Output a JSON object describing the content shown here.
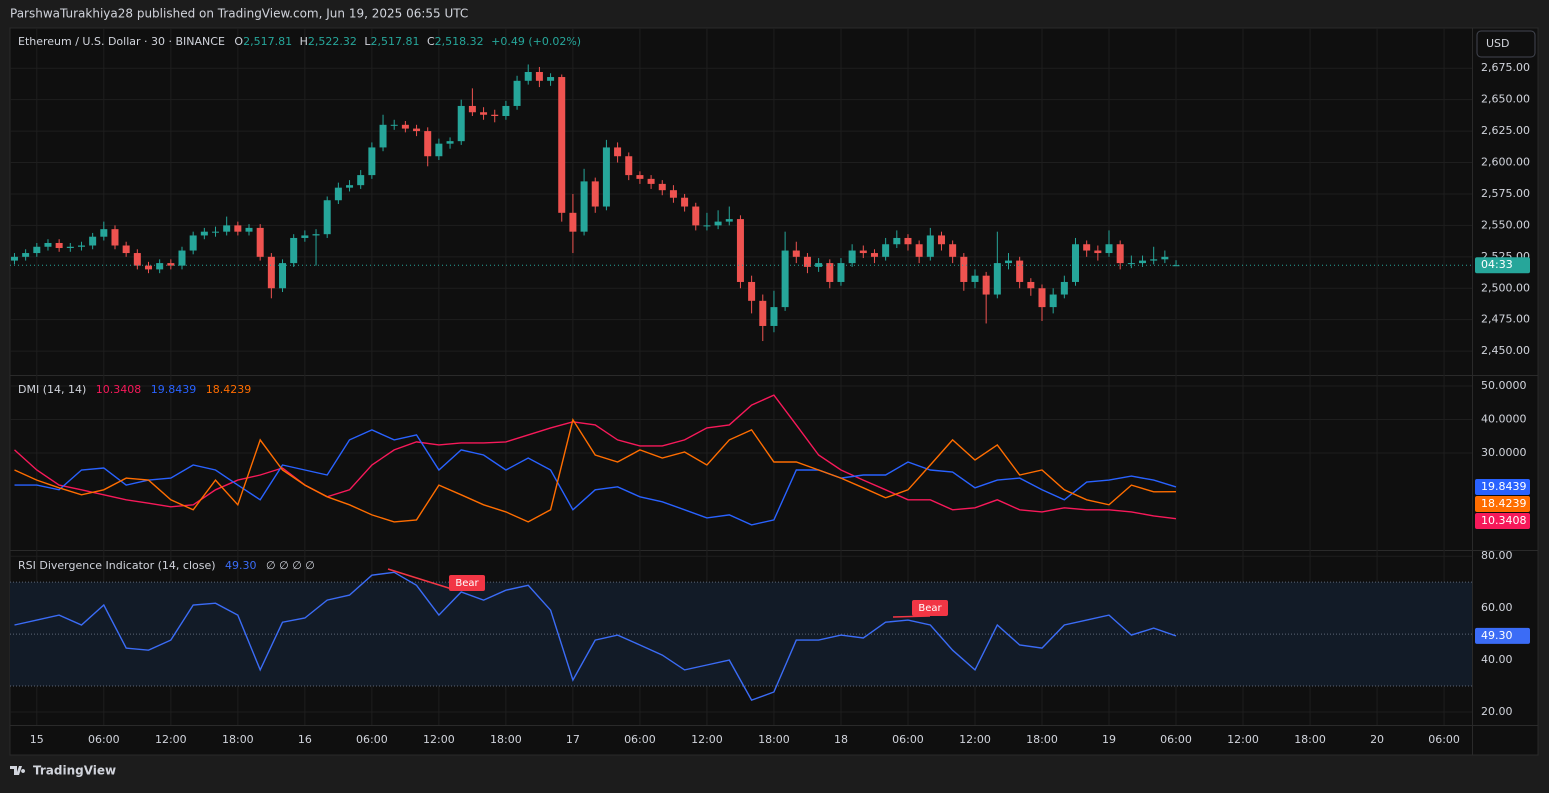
{
  "header": {
    "attribution": "ParshwaTurakhiya28 published on TradingView.com, Jun 19, 2025 06:55 UTC",
    "currency_button": "USD",
    "logo": "TradingView"
  },
  "time_axis": {
    "xlim": [
      -2.4,
      128.5
    ],
    "xticks": [
      {
        "value": 0,
        "label": "15"
      },
      {
        "value": 6,
        "label": "06:00"
      },
      {
        "value": 12,
        "label": "12:00"
      },
      {
        "value": 18,
        "label": "18:00"
      },
      {
        "value": 24,
        "label": "16"
      },
      {
        "value": 30,
        "label": "06:00"
      },
      {
        "value": 36,
        "label": "12:00"
      },
      {
        "value": 42,
        "label": "18:00"
      },
      {
        "value": 48,
        "label": "17"
      },
      {
        "value": 54,
        "label": "06:00"
      },
      {
        "value": 60,
        "label": "12:00"
      },
      {
        "value": 66,
        "label": "18:00"
      },
      {
        "value": 72,
        "label": "18"
      },
      {
        "value": 78,
        "label": "06:00"
      },
      {
        "value": 84,
        "label": "12:00"
      },
      {
        "value": 90,
        "label": "18:00"
      },
      {
        "value": 96,
        "label": "19"
      },
      {
        "value": 102,
        "label": "06:00"
      },
      {
        "value": 108,
        "label": "12:00"
      },
      {
        "value": 114,
        "label": "18:00"
      },
      {
        "value": 120,
        "label": "20"
      },
      {
        "value": 126,
        "label": "06:00"
      }
    ]
  },
  "chart_data": [
    {
      "type": "candlestick",
      "title": "Ethereum / U.S. Dollar · 30 · BINANCE",
      "ohlc_letters": [
        "O",
        "H",
        "L",
        "C"
      ],
      "ohlc_labels": [
        "2,517.81",
        "2,522.32",
        "2,517.81",
        "2,518.32"
      ],
      "change": "+0.49 (+0.02%)",
      "countdown": "04:33",
      "up_color": "#26a69a",
      "down_color": "#ef5350",
      "ylim": [
        2431,
        2707
      ],
      "yticks": [
        {
          "value": 2450,
          "label": "2,450.00"
        },
        {
          "value": 2475,
          "label": "2,475.00"
        },
        {
          "value": 2500,
          "label": "2,500.00"
        },
        {
          "value": 2525,
          "label": "2,525.00"
        },
        {
          "value": 2550,
          "label": "2,550.00"
        },
        {
          "value": 2575,
          "label": "2,575.00"
        },
        {
          "value": 2600,
          "label": "2,600.00"
        },
        {
          "value": 2625,
          "label": "2,625.00"
        },
        {
          "value": 2650,
          "label": "2,650.00"
        },
        {
          "value": 2675,
          "label": "2,675.00"
        }
      ],
      "x": [
        -2,
        -1,
        0,
        1,
        2,
        3,
        4,
        5,
        6,
        7,
        8,
        9,
        10,
        11,
        12,
        13,
        14,
        15,
        16,
        17,
        18,
        19,
        20,
        21,
        22,
        23,
        24,
        25,
        26,
        27,
        28,
        29,
        30,
        31,
        32,
        33,
        34,
        35,
        36,
        37,
        38,
        39,
        40,
        41,
        42,
        43,
        44,
        45,
        46,
        47,
        48,
        49,
        50,
        51,
        52,
        53,
        54,
        55,
        56,
        57,
        58,
        59,
        60,
        61,
        62,
        63,
        64,
        65,
        66,
        67,
        68,
        69,
        70,
        71,
        72,
        73,
        74,
        75,
        76,
        77,
        78,
        79,
        80,
        81,
        82,
        83,
        84,
        85,
        86,
        87,
        88,
        89,
        90,
        91,
        92,
        93,
        94,
        95,
        96,
        97,
        98,
        99,
        100,
        101,
        102
      ],
      "ohlc": [
        [
          2522,
          2528,
          2519,
          2525
        ],
        [
          2525,
          2531,
          2522,
          2528
        ],
        [
          2528,
          2536,
          2525,
          2533
        ],
        [
          2533,
          2539,
          2530,
          2536
        ],
        [
          2536,
          2539,
          2529,
          2532
        ],
        [
          2532,
          2536,
          2529,
          2533
        ],
        [
          2533,
          2537,
          2530,
          2534
        ],
        [
          2534,
          2544,
          2531,
          2541
        ],
        [
          2541,
          2553,
          2538,
          2547
        ],
        [
          2547,
          2550,
          2531,
          2534
        ],
        [
          2534,
          2537,
          2525,
          2528
        ],
        [
          2528,
          2531,
          2515,
          2518
        ],
        [
          2518,
          2521,
          2512,
          2515
        ],
        [
          2515,
          2523,
          2512,
          2520
        ],
        [
          2520,
          2523,
          2515,
          2518
        ],
        [
          2518,
          2533,
          2515,
          2530
        ],
        [
          2530,
          2545,
          2527,
          2542
        ],
        [
          2542,
          2548,
          2539,
          2545
        ],
        [
          2545,
          2549,
          2541,
          2545
        ],
        [
          2545,
          2557,
          2542,
          2550
        ],
        [
          2550,
          2553,
          2542,
          2545
        ],
        [
          2545,
          2551,
          2542,
          2548
        ],
        [
          2548,
          2551,
          2522,
          2525
        ],
        [
          2525,
          2528,
          2492,
          2500
        ],
        [
          2500,
          2523,
          2497,
          2520
        ],
        [
          2520,
          2543,
          2517,
          2540
        ],
        [
          2540,
          2546,
          2537,
          2542
        ],
        [
          2542,
          2547,
          2518,
          2543
        ],
        [
          2543,
          2573,
          2540,
          2570
        ],
        [
          2570,
          2584,
          2567,
          2580
        ],
        [
          2580,
          2586,
          2577,
          2582
        ],
        [
          2582,
          2594,
          2579,
          2590
        ],
        [
          2590,
          2616,
          2587,
          2612
        ],
        [
          2612,
          2638,
          2609,
          2630
        ],
        [
          2630,
          2634,
          2626,
          2630
        ],
        [
          2630,
          2633,
          2624,
          2627
        ],
        [
          2627,
          2630,
          2621,
          2625
        ],
        [
          2625,
          2628,
          2597,
          2605
        ],
        [
          2605,
          2619,
          2602,
          2615
        ],
        [
          2615,
          2620,
          2611,
          2617
        ],
        [
          2617,
          2650,
          2614,
          2645
        ],
        [
          2645,
          2659,
          2637,
          2640
        ],
        [
          2640,
          2644,
          2634,
          2638
        ],
        [
          2638,
          2642,
          2632,
          2637
        ],
        [
          2637,
          2649,
          2634,
          2645
        ],
        [
          2645,
          2669,
          2642,
          2665
        ],
        [
          2665,
          2678,
          2662,
          2672
        ],
        [
          2672,
          2676,
          2660,
          2665
        ],
        [
          2665,
          2671,
          2661,
          2668
        ],
        [
          2668,
          2670,
          2553,
          2560
        ],
        [
          2560,
          2575,
          2528,
          2545
        ],
        [
          2545,
          2595,
          2542,
          2585
        ],
        [
          2585,
          2588,
          2560,
          2565
        ],
        [
          2565,
          2618,
          2562,
          2612
        ],
        [
          2612,
          2616,
          2600,
          2605
        ],
        [
          2605,
          2608,
          2586,
          2590
        ],
        [
          2590,
          2593,
          2583,
          2587
        ],
        [
          2587,
          2590,
          2579,
          2583
        ],
        [
          2583,
          2586,
          2574,
          2578
        ],
        [
          2578,
          2582,
          2568,
          2572
        ],
        [
          2572,
          2575,
          2561,
          2565
        ],
        [
          2565,
          2568,
          2546,
          2550
        ],
        [
          2550,
          2560,
          2546,
          2550
        ],
        [
          2550,
          2562,
          2547,
          2553
        ],
        [
          2553,
          2565,
          2550,
          2555
        ],
        [
          2555,
          2558,
          2500,
          2505
        ],
        [
          2505,
          2510,
          2480,
          2490
        ],
        [
          2490,
          2495,
          2458,
          2470
        ],
        [
          2470,
          2498,
          2465,
          2485
        ],
        [
          2485,
          2545,
          2482,
          2530
        ],
        [
          2530,
          2537,
          2520,
          2525
        ],
        [
          2525,
          2528,
          2512,
          2517
        ],
        [
          2517,
          2524,
          2513,
          2520
        ],
        [
          2520,
          2523,
          2500,
          2505
        ],
        [
          2505,
          2524,
          2502,
          2520
        ],
        [
          2520,
          2535,
          2517,
          2530
        ],
        [
          2530,
          2534,
          2524,
          2528
        ],
        [
          2528,
          2531,
          2520,
          2525
        ],
        [
          2525,
          2540,
          2522,
          2535
        ],
        [
          2535,
          2546,
          2532,
          2540
        ],
        [
          2540,
          2543,
          2530,
          2535
        ],
        [
          2535,
          2538,
          2520,
          2525
        ],
        [
          2525,
          2548,
          2522,
          2542
        ],
        [
          2542,
          2545,
          2530,
          2535
        ],
        [
          2535,
          2538,
          2520,
          2525
        ],
        [
          2525,
          2528,
          2498,
          2505
        ],
        [
          2505,
          2515,
          2500,
          2510
        ],
        [
          2510,
          2513,
          2472,
          2495
        ],
        [
          2495,
          2545,
          2492,
          2520
        ],
        [
          2520,
          2528,
          2515,
          2522
        ],
        [
          2522,
          2525,
          2500,
          2505
        ],
        [
          2505,
          2508,
          2494,
          2500
        ],
        [
          2500,
          2503,
          2474,
          2485
        ],
        [
          2485,
          2500,
          2480,
          2495
        ],
        [
          2495,
          2510,
          2492,
          2505
        ],
        [
          2505,
          2540,
          2502,
          2535
        ],
        [
          2535,
          2538,
          2525,
          2530
        ],
        [
          2530,
          2534,
          2522,
          2528
        ],
        [
          2528,
          2546,
          2525,
          2535
        ],
        [
          2535,
          2538,
          2515,
          2520
        ],
        [
          2520,
          2526,
          2516,
          2520
        ],
        [
          2520,
          2526,
          2517,
          2522
        ],
        [
          2522,
          2533,
          2519,
          2523
        ],
        [
          2523,
          2530,
          2520,
          2525
        ],
        [
          2517.81,
          2522.32,
          2517.81,
          2518.32
        ]
      ]
    },
    {
      "type": "line",
      "title": "DMI (14, 14)",
      "ylim": [
        1,
        53
      ],
      "yticks": [
        {
          "value": 30,
          "label": "30.0000"
        },
        {
          "value": 40,
          "label": "40.0000"
        },
        {
          "value": 50,
          "label": "50.0000"
        }
      ],
      "x": [
        -2,
        0,
        2,
        4,
        6,
        8,
        10,
        12,
        14,
        16,
        18,
        20,
        22,
        24,
        26,
        28,
        30,
        32,
        34,
        36,
        38,
        40,
        42,
        44,
        46,
        48,
        50,
        52,
        54,
        56,
        58,
        60,
        62,
        64,
        66,
        68,
        70,
        72,
        74,
        76,
        78,
        80,
        82,
        84,
        86,
        88,
        90,
        92,
        94,
        96,
        98,
        100,
        102
      ],
      "series": [
        {
          "color": "#f7195a",
          "last_label": "10.3408",
          "values": [
            30.9,
            24.9,
            20.4,
            19,
            17.5,
            16,
            15,
            13.9,
            14.5,
            19,
            21.9,
            23.4,
            25.5,
            20.4,
            16.9,
            19,
            26.4,
            30.9,
            33.3,
            32.4,
            33,
            33,
            33.3,
            35.4,
            37.5,
            39.3,
            38.4,
            33.9,
            32.1,
            32.1,
            33.9,
            37.5,
            38.4,
            44.3,
            47.3,
            38.4,
            29.4,
            24.9,
            21.9,
            19,
            16,
            16,
            13,
            13.6,
            16,
            13,
            12.4,
            13.6,
            13,
            13,
            12.4,
            11.2,
            10.3408
          ]
        },
        {
          "color": "#2962ff",
          "last_label": "19.8439",
          "values": [
            20.4,
            20.4,
            19,
            24.9,
            25.5,
            20.4,
            21.9,
            22.5,
            26.4,
            24.9,
            20.4,
            16,
            26.4,
            24.9,
            23.4,
            33.9,
            36.9,
            33.9,
            35.4,
            24.9,
            30.9,
            29.4,
            24.9,
            28.5,
            24.9,
            13,
            19,
            19.9,
            16.9,
            15.4,
            13,
            10.6,
            11.5,
            8.5,
            10,
            24.9,
            24.9,
            22.5,
            23.4,
            23.4,
            27.3,
            24.9,
            24.3,
            19.6,
            21.9,
            22.5,
            19,
            16,
            21.3,
            21.9,
            23.1,
            21.9,
            19.8439
          ]
        },
        {
          "color": "#ff6d00",
          "last_label": "18.4239",
          "values": [
            24.9,
            21.9,
            19.6,
            17.5,
            19,
            22.5,
            21.9,
            16,
            13,
            21.9,
            14.5,
            33.9,
            24.9,
            20.4,
            16.9,
            14.5,
            11.5,
            9.4,
            10,
            20.4,
            17.5,
            14.5,
            12.4,
            9.4,
            13,
            39.9,
            29.4,
            27.3,
            30.9,
            28.5,
            30.3,
            26.4,
            33.9,
            36.9,
            27.3,
            27.3,
            24.9,
            22.5,
            19.6,
            16.6,
            19,
            26.4,
            33.9,
            27.9,
            32.4,
            23.4,
            24.9,
            19,
            16,
            14.5,
            20.4,
            18.4,
            18.4239
          ]
        }
      ]
    },
    {
      "type": "line",
      "title": "RSI Divergence Indicator (14, close)",
      "placeholders": "∅ ∅ ∅ ∅",
      "ylim": [
        15,
        82
      ],
      "yticks": [
        {
          "value": 20,
          "label": "20.00"
        },
        {
          "value": 40,
          "label": "40.00"
        },
        {
          "value": 60,
          "label": "60.00"
        },
        {
          "value": 80,
          "label": "80.00"
        }
      ],
      "bands": [
        30,
        70
      ],
      "midline": 50,
      "annotations": [
        {
          "text": "Bear"
        },
        {
          "text": "Bear"
        }
      ],
      "x": [
        -2,
        0,
        2,
        4,
        6,
        8,
        10,
        12,
        14,
        16,
        18,
        20,
        22,
        24,
        26,
        28,
        30,
        32,
        34,
        36,
        38,
        40,
        42,
        44,
        46,
        48,
        50,
        52,
        54,
        56,
        58,
        60,
        62,
        64,
        66,
        68,
        70,
        72,
        74,
        76,
        78,
        80,
        82,
        84,
        86,
        88,
        90,
        92,
        94,
        96,
        98,
        100,
        102
      ],
      "series": [
        {
          "color": "#3b6cf6",
          "last_label": "49.30",
          "values": [
            53.5,
            55.4,
            57.3,
            53.5,
            61.2,
            44.6,
            43.8,
            47.7,
            61.2,
            61.9,
            57.3,
            36.2,
            54.6,
            56.2,
            63.1,
            65,
            72.7,
            73.8,
            68.8,
            57.3,
            66.2,
            63.1,
            66.9,
            68.8,
            59.2,
            32.3,
            47.7,
            49.6,
            45.8,
            41.9,
            36.2,
            38.1,
            40,
            24.6,
            27.7,
            47.7,
            47.7,
            49.6,
            48.5,
            54.6,
            55.4,
            53.5,
            43.8,
            36.2,
            53.5,
            45.8,
            44.6,
            53.5,
            55.4,
            57.3,
            49.6,
            52.3,
            49.3
          ]
        }
      ]
    }
  ]
}
